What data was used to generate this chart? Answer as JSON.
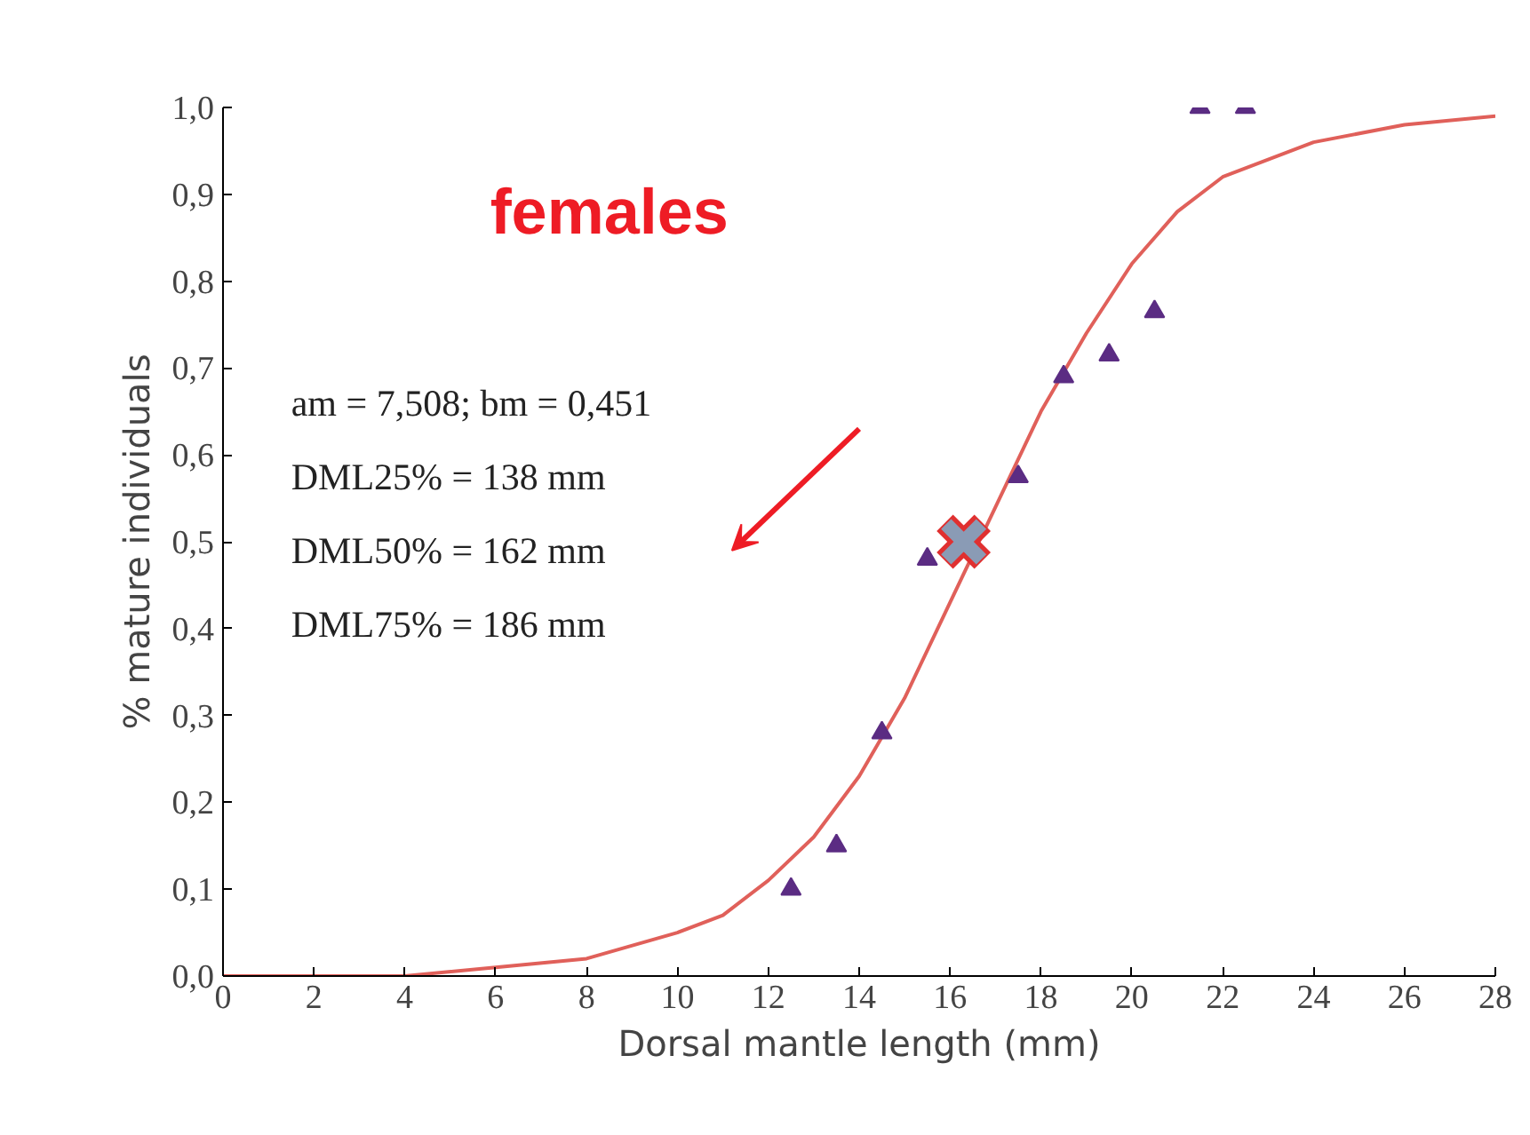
{
  "chart_data": {
    "type": "scatter",
    "title": "females",
    "xlabel": "Dorsal mantle length (mm)",
    "ylabel": "% mature individuals",
    "annotations": [
      "am = 7,508; bm = 0,451",
      "DML25% = 138 mm",
      "DML50% = 162 mm",
      "DML75% = 186 mm"
    ],
    "xlim": [
      0,
      28
    ],
    "xticks": [
      0,
      2,
      4,
      6,
      8,
      10,
      12,
      14,
      16,
      18,
      20,
      22,
      24,
      26,
      28
    ],
    "ylim": [
      0,
      1
    ],
    "yticks": [
      {
        "value": 0,
        "label": "0,0"
      },
      {
        "value": 0.1,
        "label": "0,1"
      },
      {
        "value": 0.2,
        "label": "0,2"
      },
      {
        "value": 0.3,
        "label": "0,3"
      },
      {
        "value": 0.4,
        "label": "0,4"
      },
      {
        "value": 0.5,
        "label": "0,5"
      },
      {
        "value": 0.6,
        "label": "0,6"
      },
      {
        "value": 0.7,
        "label": "0,7"
      },
      {
        "value": 0.8,
        "label": "0,8"
      },
      {
        "value": 0.9,
        "label": "0,9"
      },
      {
        "value": 1,
        "label": "1,0"
      }
    ],
    "grid": false,
    "series": [
      {
        "type": "line",
        "color": "#e0605a",
        "marker": "none",
        "x": [
          0,
          2,
          4,
          6,
          8,
          10,
          11,
          12,
          13,
          14,
          15,
          16,
          17,
          18,
          19,
          20,
          21,
          22,
          24,
          26,
          28
        ],
        "values": [
          0,
          0,
          0,
          0.01,
          0.02,
          0.05,
          0.07,
          0.11,
          0.16,
          0.23,
          0.32,
          0.43,
          0.54,
          0.65,
          0.74,
          0.82,
          0.88,
          0.92,
          0.96,
          0.98,
          0.99
        ]
      },
      {
        "color": "#5b2c83",
        "marker": "triangle",
        "x": [
          12.5,
          13.5,
          14.5,
          15.5,
          17.5,
          18.5,
          19.5,
          20.5,
          21.5,
          22.5
        ],
        "values": [
          0.1,
          0.15,
          0.28,
          0.48,
          0.575,
          0.69,
          0.715,
          0.765,
          1.0,
          1.0
        ]
      },
      {
        "color": "#8a9bb5",
        "marker": "cross",
        "x": [
          16.3
        ],
        "values": [
          0.5
        ]
      }
    ]
  }
}
